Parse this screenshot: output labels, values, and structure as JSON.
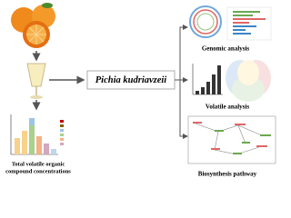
{
  "center": {
    "label": "Pichia kudriavzeii"
  },
  "panels": [
    {
      "label": "Genomic analysis"
    },
    {
      "label": "Volatile analysis"
    },
    {
      "label": "Biosynthesis pathway"
    }
  ],
  "left_chart": {
    "label_lines": [
      "Total volatile organic",
      "compound concentrations"
    ]
  }
}
